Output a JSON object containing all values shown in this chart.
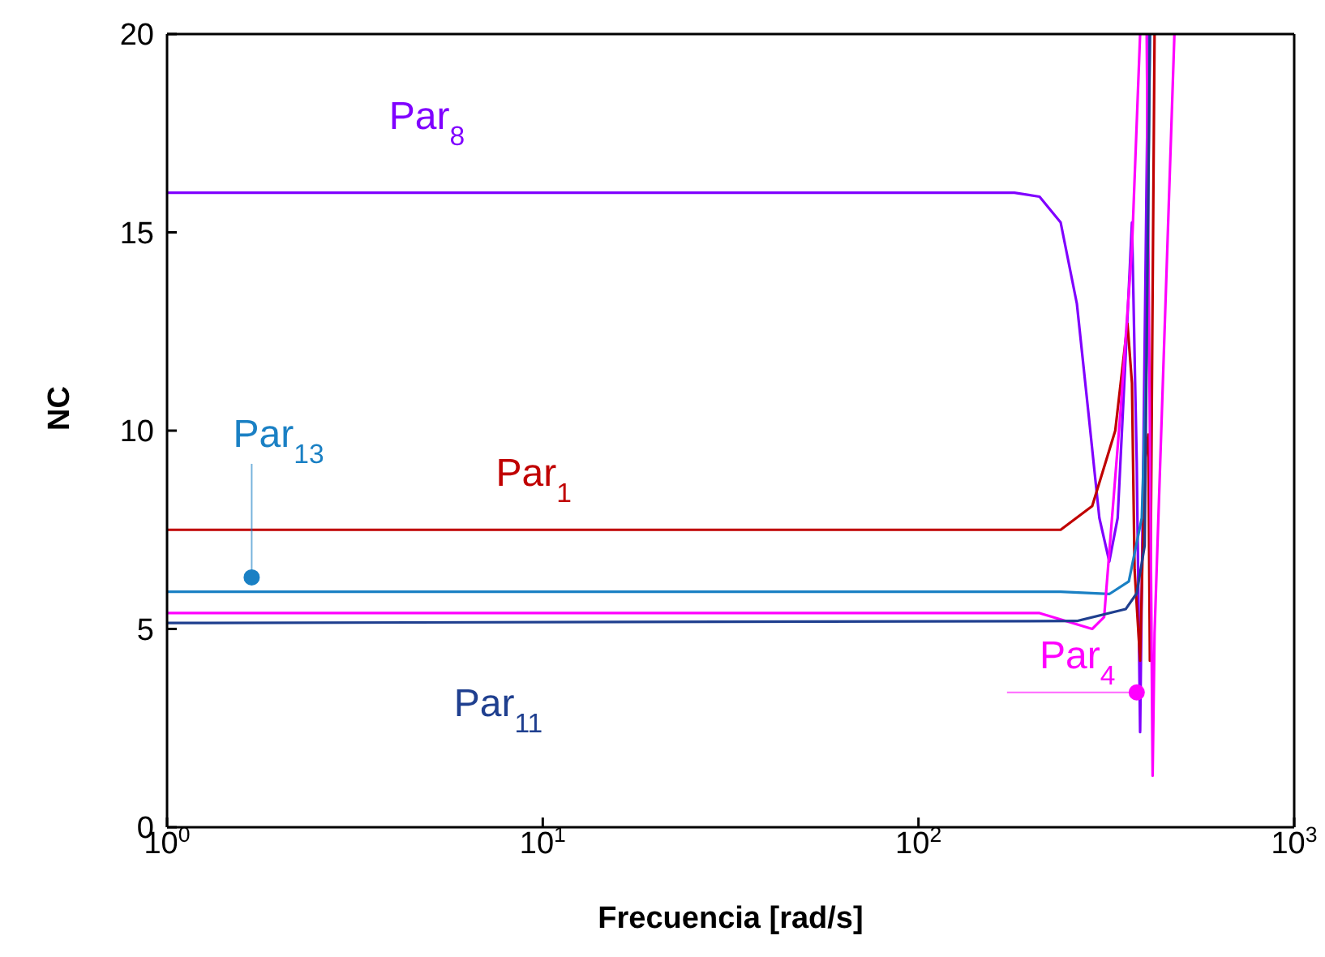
{
  "chart_data": {
    "type": "line",
    "xlabel": "Frecuencia [rad/s]",
    "ylabel": "NC",
    "log": "x",
    "xlim": [
      1,
      1000
    ],
    "xticks": [
      {
        "value": 1,
        "label": "10$^{0}$"
      },
      {
        "value": 10,
        "label": "10$^{1}$"
      },
      {
        "value": 100,
        "label": "10$^{2}$"
      },
      {
        "value": 1000,
        "label": "10$^{3}$"
      }
    ],
    "ylim": [
      0,
      20
    ],
    "yticks": [
      0,
      5,
      10,
      15,
      20
    ],
    "marker": "none",
    "line_style": "solid",
    "series": [
      {
        "name": "Par$_{8}$",
        "color": "#8000ff",
        "x": [
          1,
          180,
          210,
          239,
          264,
          283,
          303,
          322,
          339,
          356,
          370,
          381,
          389,
          409
        ],
        "values": [
          16,
          16,
          15.9,
          15.25,
          13.2,
          10.5,
          7.8,
          6.7,
          7.8,
          11.9,
          15.25,
          9.2,
          2.4,
          20
        ]
      },
      {
        "name": "Par$_{1}$",
        "color": "#c00000",
        "x": [
          1,
          239,
          290,
          334,
          360,
          370,
          376,
          389,
          400,
          409,
          413,
          425
        ],
        "values": [
          7.5,
          7.5,
          8.1,
          10,
          12.7,
          11.2,
          6.5,
          4.2,
          9.2,
          9.9,
          4.2,
          20
        ]
      },
      {
        "name": "Par$_{13}$",
        "color": "#1a80c4",
        "x": [
          1,
          239,
          322,
          363,
          393,
          405,
          413
        ],
        "values": [
          5.94,
          5.94,
          5.88,
          6.2,
          7.8,
          11.9,
          20
        ]
      },
      {
        "name": "Par$_{4}$",
        "color": "#ff00ff",
        "x": [
          1,
          210,
          290,
          312,
          345,
          370,
          389,
          395,
          405,
          420,
          425,
          480
        ],
        "values": [
          5.4,
          5.4,
          5,
          5.3,
          10.5,
          14.6,
          20,
          null,
          20,
          1.3,
          4.9,
          20
        ]
      },
      {
        "name": "Par$_{11}$",
        "color": "#1f3f8f",
        "x": [
          1,
          264,
          356,
          381,
          400,
          413
        ],
        "values": [
          5.15,
          5.2,
          5.5,
          5.9,
          7.1,
          20
        ]
      }
    ]
  }
}
